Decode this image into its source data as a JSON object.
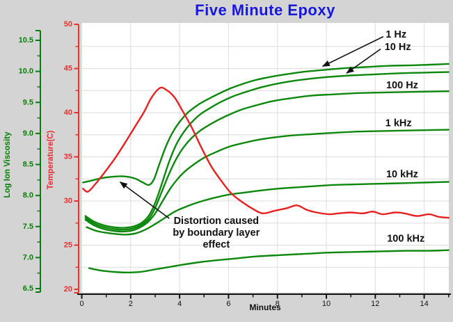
{
  "window": {
    "background": "#d4d4d4",
    "plot_background": "#ffffff"
  },
  "chart_data": {
    "type": "line",
    "title": "Five Minute Epoxy",
    "title_color": "#1717dd",
    "x_axis": {
      "label": "Minutes",
      "min": 0,
      "max": 15.1,
      "tick_values": [
        0,
        2,
        4,
        6,
        8,
        10,
        12,
        14
      ],
      "tick_labels": [
        "0",
        "2",
        "4",
        "6",
        "8",
        "10",
        "12",
        "14"
      ],
      "minor_tick_values": [
        1,
        3,
        5,
        7,
        9,
        11,
        13,
        15
      ],
      "color": "#111111"
    },
    "viscosity_axis": {
      "label": "Log Ion Viscosity",
      "min": 6.5,
      "max": 10.5,
      "tick_values": [
        6.5,
        7.0,
        7.5,
        8.0,
        8.5,
        9.0,
        9.5,
        10.0,
        10.5
      ],
      "tick_labels": [
        "6.5",
        "7.0",
        "7.5",
        "8.0",
        "8.5",
        "9.0",
        "9.5",
        "10.0",
        "10.5"
      ],
      "minor_tick_values": [
        6.75,
        7.25,
        7.75,
        8.25,
        8.75,
        9.25,
        9.75,
        10.25
      ],
      "color": "#047e04"
    },
    "temperature_axis": {
      "label": "Temperature(C)",
      "min": 20,
      "max": 50,
      "tick_values": [
        20,
        25,
        30,
        35,
        40,
        45,
        50
      ],
      "tick_labels": [
        "20",
        "25",
        "30",
        "35",
        "40",
        "45",
        "50"
      ],
      "minor_tick_values": [
        22.5,
        27.5,
        32.5,
        37.5,
        42.5,
        47.5
      ],
      "color": "#e63030"
    },
    "grid": {
      "vertical_minutes": [
        2,
        4,
        6,
        8,
        10,
        12,
        14
      ],
      "horizontal_temps": [
        22.5,
        25,
        27.5,
        30,
        32.5,
        35,
        37.5,
        40,
        42.5,
        45,
        47.5
      ],
      "color": "#dcdcdc"
    },
    "series": [
      {
        "name": "1 Hz",
        "axis": "viscosity",
        "color": "#0b870b",
        "points": [
          [
            0.05,
            8.21
          ],
          [
            0.4,
            8.24
          ],
          [
            0.8,
            8.28
          ],
          [
            1.2,
            8.3
          ],
          [
            1.6,
            8.31
          ],
          [
            1.9,
            8.3
          ],
          [
            2.2,
            8.27
          ],
          [
            2.5,
            8.21
          ],
          [
            2.75,
            8.17
          ],
          [
            2.95,
            8.26
          ],
          [
            3.15,
            8.48
          ],
          [
            3.45,
            8.8
          ],
          [
            3.75,
            9.04
          ],
          [
            4.05,
            9.21
          ],
          [
            4.35,
            9.34
          ],
          [
            4.75,
            9.46
          ],
          [
            5.15,
            9.55
          ],
          [
            5.6,
            9.64
          ],
          [
            6.1,
            9.73
          ],
          [
            6.6,
            9.8
          ],
          [
            7.1,
            9.86
          ],
          [
            7.7,
            9.91
          ],
          [
            8.3,
            9.95
          ],
          [
            9.0,
            9.99
          ],
          [
            9.8,
            10.02
          ],
          [
            10.7,
            10.05
          ],
          [
            11.6,
            10.07
          ],
          [
            12.6,
            10.09
          ],
          [
            13.7,
            10.1
          ],
          [
            15.0,
            10.12
          ]
        ]
      },
      {
        "name": "10 Hz",
        "axis": "viscosity",
        "color": "#0b870b",
        "points": [
          [
            0.15,
            7.67
          ],
          [
            0.5,
            7.58
          ],
          [
            0.9,
            7.52
          ],
          [
            1.3,
            7.49
          ],
          [
            1.7,
            7.48
          ],
          [
            2.1,
            7.5
          ],
          [
            2.45,
            7.56
          ],
          [
            2.75,
            7.68
          ],
          [
            3.0,
            7.88
          ],
          [
            3.25,
            8.16
          ],
          [
            3.55,
            8.52
          ],
          [
            3.85,
            8.81
          ],
          [
            4.15,
            9.01
          ],
          [
            4.45,
            9.16
          ],
          [
            4.85,
            9.31
          ],
          [
            5.25,
            9.41
          ],
          [
            5.7,
            9.51
          ],
          [
            6.2,
            9.6
          ],
          [
            6.8,
            9.68
          ],
          [
            7.4,
            9.75
          ],
          [
            8.1,
            9.81
          ],
          [
            8.9,
            9.86
          ],
          [
            9.8,
            9.9
          ],
          [
            10.8,
            9.93
          ],
          [
            11.9,
            9.95
          ],
          [
            13.0,
            9.97
          ],
          [
            14.0,
            9.98
          ],
          [
            15.0,
            9.99
          ]
        ]
      },
      {
        "name": "100 Hz",
        "axis": "viscosity",
        "color": "#0b870b",
        "points": [
          [
            0.15,
            7.64
          ],
          [
            0.5,
            7.55
          ],
          [
            0.9,
            7.49
          ],
          [
            1.3,
            7.46
          ],
          [
            1.7,
            7.45
          ],
          [
            2.1,
            7.47
          ],
          [
            2.45,
            7.53
          ],
          [
            2.75,
            7.63
          ],
          [
            3.0,
            7.8
          ],
          [
            3.25,
            8.04
          ],
          [
            3.55,
            8.33
          ],
          [
            3.85,
            8.58
          ],
          [
            4.15,
            8.77
          ],
          [
            4.5,
            8.93
          ],
          [
            4.9,
            9.06
          ],
          [
            5.4,
            9.18
          ],
          [
            5.9,
            9.28
          ],
          [
            6.5,
            9.38
          ],
          [
            7.1,
            9.45
          ],
          [
            7.8,
            9.52
          ],
          [
            8.6,
            9.57
          ],
          [
            9.4,
            9.61
          ],
          [
            10.3,
            9.63
          ],
          [
            11.3,
            9.65
          ],
          [
            12.4,
            9.66
          ],
          [
            13.6,
            9.67
          ],
          [
            15.0,
            9.68
          ]
        ]
      },
      {
        "name": "1 kHz",
        "axis": "viscosity",
        "color": "#0b870b",
        "points": [
          [
            0.15,
            7.61
          ],
          [
            0.5,
            7.52
          ],
          [
            0.9,
            7.46
          ],
          [
            1.3,
            7.43
          ],
          [
            1.7,
            7.42
          ],
          [
            2.1,
            7.44
          ],
          [
            2.45,
            7.5
          ],
          [
            2.75,
            7.59
          ],
          [
            3.05,
            7.74
          ],
          [
            3.35,
            7.94
          ],
          [
            3.65,
            8.13
          ],
          [
            3.95,
            8.28
          ],
          [
            4.25,
            8.4
          ],
          [
            4.65,
            8.52
          ],
          [
            5.05,
            8.62
          ],
          [
            5.55,
            8.71
          ],
          [
            6.05,
            8.79
          ],
          [
            6.65,
            8.85
          ],
          [
            7.25,
            8.9
          ],
          [
            7.95,
            8.94
          ],
          [
            8.65,
            8.97
          ],
          [
            9.45,
            8.99
          ],
          [
            10.3,
            9.01
          ],
          [
            11.3,
            9.03
          ],
          [
            12.4,
            9.04
          ],
          [
            13.6,
            9.05
          ],
          [
            15.0,
            9.06
          ]
        ]
      },
      {
        "name": "10 kHz",
        "axis": "viscosity",
        "color": "#0b870b",
        "points": [
          [
            0.2,
            7.49
          ],
          [
            0.6,
            7.43
          ],
          [
            1.0,
            7.4
          ],
          [
            1.4,
            7.38
          ],
          [
            1.8,
            7.37
          ],
          [
            2.2,
            7.39
          ],
          [
            2.6,
            7.45
          ],
          [
            3.0,
            7.54
          ],
          [
            3.4,
            7.64
          ],
          [
            3.8,
            7.74
          ],
          [
            4.2,
            7.81
          ],
          [
            4.6,
            7.87
          ],
          [
            5.1,
            7.93
          ],
          [
            5.6,
            7.98
          ],
          [
            6.1,
            8.02
          ],
          [
            6.7,
            8.05
          ],
          [
            7.3,
            8.08
          ],
          [
            8.0,
            8.11
          ],
          [
            8.7,
            8.13
          ],
          [
            9.5,
            8.15
          ],
          [
            10.3,
            8.17
          ],
          [
            11.2,
            8.18
          ],
          [
            12.2,
            8.19
          ],
          [
            13.2,
            8.2
          ],
          [
            14.1,
            8.21
          ],
          [
            15.0,
            8.22
          ]
        ]
      },
      {
        "name": "100 kHz",
        "axis": "viscosity",
        "color": "#0b870b",
        "points": [
          [
            0.3,
            6.83
          ],
          [
            0.8,
            6.79
          ],
          [
            1.3,
            6.77
          ],
          [
            1.8,
            6.76
          ],
          [
            2.4,
            6.77
          ],
          [
            3.0,
            6.81
          ],
          [
            3.6,
            6.85
          ],
          [
            4.2,
            6.89
          ],
          [
            4.9,
            6.93
          ],
          [
            5.6,
            6.96
          ],
          [
            6.4,
            6.99
          ],
          [
            7.2,
            7.02
          ],
          [
            8.1,
            7.04
          ],
          [
            9.1,
            7.06
          ],
          [
            10.1,
            7.08
          ],
          [
            11.1,
            7.09
          ],
          [
            12.2,
            7.1
          ],
          [
            13.3,
            7.11
          ],
          [
            14.2,
            7.11
          ],
          [
            15.0,
            7.12
          ]
        ]
      },
      {
        "name": "Temperature",
        "axis": "temperature",
        "color": "#e81f1f",
        "points": [
          [
            0.05,
            31.4
          ],
          [
            0.25,
            31.05
          ],
          [
            0.55,
            31.9
          ],
          [
            0.95,
            33.3
          ],
          [
            1.35,
            34.8
          ],
          [
            1.75,
            36.5
          ],
          [
            2.15,
            38.3
          ],
          [
            2.55,
            40.1
          ],
          [
            2.85,
            41.7
          ],
          [
            3.2,
            42.8
          ],
          [
            3.5,
            42.5
          ],
          [
            3.8,
            41.7
          ],
          [
            4.1,
            40.3
          ],
          [
            4.5,
            38.3
          ],
          [
            4.9,
            36.0
          ],
          [
            5.3,
            33.9
          ],
          [
            5.7,
            32.3
          ],
          [
            6.1,
            30.9
          ],
          [
            6.5,
            30.0
          ],
          [
            7.0,
            29.1
          ],
          [
            7.4,
            28.6
          ],
          [
            7.9,
            28.9
          ],
          [
            8.4,
            29.2
          ],
          [
            8.8,
            29.5
          ],
          [
            9.2,
            29.0
          ],
          [
            9.6,
            28.7
          ],
          [
            10.1,
            28.5
          ],
          [
            10.5,
            28.6
          ],
          [
            11.0,
            28.7
          ],
          [
            11.5,
            28.6
          ],
          [
            11.9,
            28.8
          ],
          [
            12.3,
            28.5
          ],
          [
            12.8,
            28.7
          ],
          [
            13.2,
            28.6
          ],
          [
            13.7,
            28.3
          ],
          [
            14.2,
            28.5
          ],
          [
            14.6,
            28.2
          ],
          [
            15.0,
            28.1
          ]
        ]
      }
    ],
    "curve_labels": [
      {
        "text": "1 Hz",
        "x": 12.85,
        "y": 10.59
      },
      {
        "text": "10 Hz",
        "x": 12.92,
        "y": 10.39
      },
      {
        "text": "100 Hz",
        "x": 13.1,
        "y": 9.77
      },
      {
        "text": "1 kHz",
        "x": 12.95,
        "y": 9.16
      },
      {
        "text": "10 kHz",
        "x": 13.1,
        "y": 8.34
      },
      {
        "text": "100 kHz",
        "x": 13.25,
        "y": 7.3
      }
    ],
    "arrows": [
      {
        "from": [
          12.33,
          10.56
        ],
        "to": [
          9.84,
          10.08
        ]
      },
      {
        "from": [
          12.22,
          10.36
        ],
        "to": [
          10.82,
          9.97
        ]
      },
      {
        "from": [
          3.58,
          7.63
        ],
        "to": [
          1.56,
          8.22
        ]
      }
    ],
    "annotation": {
      "lines": [
        "Distortion caused",
        "by boundary layer",
        "effect"
      ],
      "x": 5.5,
      "y": 7.54
    }
  }
}
